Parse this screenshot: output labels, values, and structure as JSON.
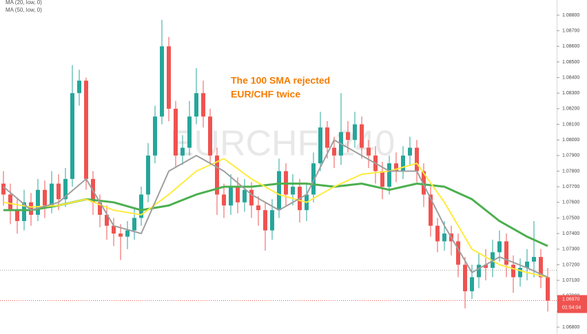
{
  "chart_data": {
    "type": "candlestick",
    "watermark": "EURCHF, 240",
    "annotation": [
      "The 100 SMA rejected",
      "EUR/CHF twice"
    ],
    "indicator_labels": [
      "MA (20, low, 0)",
      "MA (50, low, 0)"
    ],
    "up_color": "#26a69a",
    "down_color": "#ef5350",
    "open": [
      1.0772,
      1.0765,
      1.0755,
      1.0748,
      1.076,
      1.0752,
      1.0768,
      1.0758,
      1.0772,
      1.0762,
      1.0775,
      1.083,
      1.0838,
      1.0775,
      1.076,
      1.0752,
      1.0745,
      1.074,
      1.0738,
      1.0742,
      1.075,
      1.0765,
      1.079,
      1.0815,
      1.086,
      1.082,
      1.079,
      1.0795,
      1.0815,
      1.083,
      1.0815,
      1.079,
      1.0765,
      1.0758,
      1.077,
      1.076,
      1.0768,
      1.0758,
      1.0755,
      1.0742,
      1.0755,
      1.078,
      1.0765,
      1.077,
      1.0755,
      1.0765,
      1.0785,
      1.0808,
      1.0795,
      1.079,
      1.0805,
      1.08,
      1.081,
      1.0795,
      1.079,
      1.078,
      1.077,
      1.0785,
      1.078,
      1.079,
      1.0795,
      1.078,
      1.0765,
      1.0745,
      1.0735,
      1.074,
      1.0735,
      1.072,
      1.0703,
      1.0712,
      1.072,
      1.0718,
      1.0728,
      1.0735,
      1.072,
      1.0712,
      1.0718,
      1.0722,
      1.0725,
      1.0712
    ],
    "high": [
      1.078,
      1.0772,
      1.0762,
      1.0768,
      1.0766,
      1.0775,
      1.0774,
      1.078,
      1.0778,
      1.0782,
      1.0848,
      1.0845,
      1.084,
      1.078,
      1.0765,
      1.0758,
      1.075,
      1.0746,
      1.0748,
      1.0756,
      1.077,
      1.0798,
      1.0822,
      1.0877,
      1.0866,
      1.0825,
      1.0803,
      1.0825,
      1.0846,
      1.0838,
      1.082,
      1.0795,
      1.0772,
      1.0778,
      1.0776,
      1.0775,
      1.0773,
      1.0764,
      1.076,
      1.0762,
      1.0788,
      1.0785,
      1.0778,
      1.0775,
      1.0772,
      1.0792,
      1.0818,
      1.0812,
      1.0802,
      1.083,
      1.0812,
      1.0818,
      1.0815,
      1.08,
      1.0796,
      1.0786,
      1.079,
      1.0792,
      1.0796,
      1.0802,
      1.08,
      1.0785,
      1.077,
      1.075,
      1.0748,
      1.0745,
      1.074,
      1.0725,
      1.072,
      1.0728,
      1.073,
      1.0736,
      1.0742,
      1.074,
      1.0726,
      1.0724,
      1.073,
      1.0748,
      1.073,
      1.0718
    ],
    "low": [
      1.0758,
      1.0746,
      1.074,
      1.0742,
      1.0745,
      1.0748,
      1.075,
      1.0753,
      1.0755,
      1.0757,
      1.077,
      1.0822,
      1.0768,
      1.0752,
      1.0744,
      1.0736,
      1.0732,
      1.0723,
      1.073,
      1.0736,
      1.0745,
      1.076,
      1.0785,
      1.081,
      1.0812,
      1.0782,
      1.0784,
      1.079,
      1.081,
      1.0808,
      1.0784,
      1.0752,
      1.075,
      1.0752,
      1.0753,
      1.0754,
      1.075,
      1.0745,
      1.0729,
      1.0736,
      1.075,
      1.0758,
      1.0758,
      1.0747,
      1.0748,
      1.076,
      1.078,
      1.0788,
      1.0782,
      1.0784,
      1.0792,
      1.0795,
      1.0788,
      1.0782,
      1.0772,
      1.0762,
      1.0765,
      1.0773,
      1.0775,
      1.0784,
      1.0773,
      1.0757,
      1.0738,
      1.0728,
      1.0729,
      1.0726,
      1.0712,
      1.0692,
      1.0698,
      1.0705,
      1.071,
      1.0712,
      1.0722,
      1.0712,
      1.0702,
      1.0706,
      1.071,
      1.0712,
      1.0705,
      1.069
    ],
    "close": [
      1.0765,
      1.0755,
      1.0748,
      1.076,
      1.0752,
      1.0768,
      1.0758,
      1.0772,
      1.0762,
      1.0775,
      1.083,
      1.0838,
      1.0775,
      1.076,
      1.0752,
      1.0745,
      1.074,
      1.0738,
      1.0742,
      1.075,
      1.0765,
      1.079,
      1.0815,
      1.086,
      1.082,
      1.079,
      1.0795,
      1.0815,
      1.083,
      1.0815,
      1.079,
      1.0765,
      1.0758,
      1.077,
      1.076,
      1.0768,
      1.0758,
      1.0755,
      1.0742,
      1.0755,
      1.078,
      1.0765,
      1.077,
      1.0755,
      1.0765,
      1.0785,
      1.0808,
      1.0795,
      1.079,
      1.0805,
      1.08,
      1.081,
      1.0795,
      1.079,
      1.078,
      1.077,
      1.0785,
      1.078,
      1.079,
      1.0795,
      1.078,
      1.0765,
      1.0745,
      1.0735,
      1.074,
      1.0735,
      1.072,
      1.0703,
      1.0712,
      1.072,
      1.0718,
      1.0728,
      1.0735,
      1.072,
      1.0712,
      1.0718,
      1.0722,
      1.0725,
      1.0712,
      1.0697
    ],
    "ma_x": [
      0,
      4,
      8,
      12,
      16,
      20,
      24,
      28,
      32,
      36,
      40,
      44,
      48,
      52,
      56,
      60,
      64,
      68,
      72,
      76,
      79
    ],
    "series": [
      {
        "color": "#4caf50",
        "width": 3,
        "values": [
          1.0755,
          1.0755,
          1.0758,
          1.0762,
          1.076,
          1.0755,
          1.0758,
          1.0765,
          1.077,
          1.077,
          1.0772,
          1.0772,
          1.077,
          1.0772,
          1.0768,
          1.0772,
          1.077,
          1.0762,
          1.0748,
          1.0738,
          1.0732
        ]
      },
      {
        "color": "#ffeb3b",
        "width": 2,
        "values": [
          1.076,
          1.0757,
          1.0758,
          1.0762,
          1.0755,
          1.0752,
          1.0765,
          1.078,
          1.0788,
          1.0775,
          1.0765,
          1.076,
          1.077,
          1.0778,
          1.078,
          1.0785,
          1.076,
          1.073,
          1.072,
          1.0715,
          1.0712
        ]
      },
      {
        "color": "#9e9e9e",
        "width": 2,
        "values": [
          1.077,
          1.0755,
          1.076,
          1.0775,
          1.0745,
          1.074,
          1.078,
          1.079,
          1.078,
          1.0765,
          1.0755,
          1.0765,
          1.08,
          1.079,
          1.078,
          1.078,
          1.0745,
          1.0715,
          1.0725,
          1.0718,
          1.0712
        ]
      }
    ],
    "ref_line": 1.07165,
    "last_price": {
      "value": 1.0697,
      "label": "1.06970"
    },
    "countdown": "01:54:04",
    "ylim": [
      1.06756,
      1.08897
    ],
    "yticks": [
      {
        "value": 1.068,
        "label": "1.06800"
      },
      {
        "value": 1.069,
        "label": "1.06900"
      },
      {
        "value": 1.07,
        "label": "1.07000"
      },
      {
        "value": 1.071,
        "label": "1.07100"
      },
      {
        "value": 1.072,
        "label": "1.07200"
      },
      {
        "value": 1.073,
        "label": "1.07300"
      },
      {
        "value": 1.074,
        "label": "1.07400"
      },
      {
        "value": 1.075,
        "label": "1.07500"
      },
      {
        "value": 1.076,
        "label": "1.07600"
      },
      {
        "value": 1.077,
        "label": "1.07700"
      },
      {
        "value": 1.078,
        "label": "1.07800"
      },
      {
        "value": 1.079,
        "label": "1.07900"
      },
      {
        "value": 1.08,
        "label": "1.08000"
      },
      {
        "value": 1.081,
        "label": "1.08100"
      },
      {
        "value": 1.082,
        "label": "1.08200"
      },
      {
        "value": 1.083,
        "label": "1.08300"
      },
      {
        "value": 1.084,
        "label": "1.08400"
      },
      {
        "value": 1.085,
        "label": "1.08500"
      },
      {
        "value": 1.086,
        "label": "1.08600"
      },
      {
        "value": 1.087,
        "label": "1.08700"
      },
      {
        "value": 1.088,
        "label": "1.08800"
      }
    ]
  }
}
